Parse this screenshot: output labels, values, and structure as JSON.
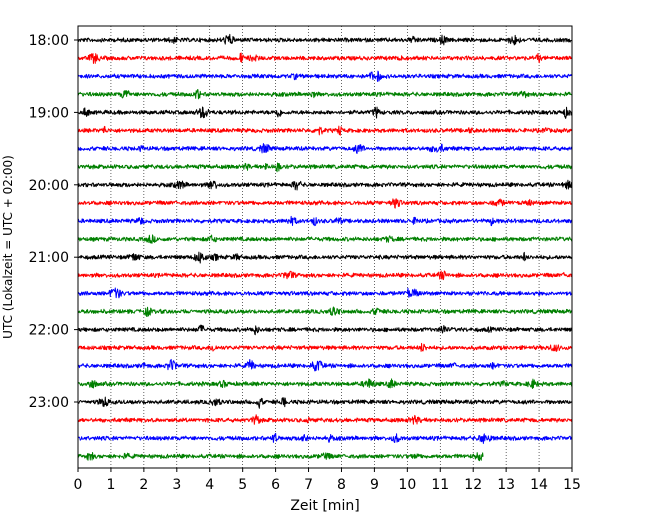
{
  "chart_data": {
    "type": "line",
    "title": "",
    "xlabel": "Zeit  [min]",
    "ylabel": "UTC (Lokalzeit = UTC + 02:00)",
    "xlim": [
      0,
      15
    ],
    "x_ticks": [
      "0",
      "1",
      "2",
      "3",
      "4",
      "5",
      "6",
      "7",
      "8",
      "9",
      "10",
      "11",
      "12",
      "13",
      "14",
      "15"
    ],
    "y_ticks": [
      "18:00",
      "19:00",
      "20:00",
      "21:00",
      "22:00",
      "23:00"
    ],
    "grid": "vertical dotted lines at each minute",
    "traces": [
      {
        "start": "18:00",
        "color": "#000000",
        "end_min": 15
      },
      {
        "start": "18:15",
        "color": "#ff0000",
        "end_min": 15
      },
      {
        "start": "18:30",
        "color": "#0000ff",
        "end_min": 15
      },
      {
        "start": "18:45",
        "color": "#008000",
        "end_min": 15
      },
      {
        "start": "19:00",
        "color": "#000000",
        "end_min": 15
      },
      {
        "start": "19:15",
        "color": "#ff0000",
        "end_min": 15
      },
      {
        "start": "19:30",
        "color": "#0000ff",
        "end_min": 15
      },
      {
        "start": "19:45",
        "color": "#008000",
        "end_min": 15
      },
      {
        "start": "20:00",
        "color": "#000000",
        "end_min": 15
      },
      {
        "start": "20:15",
        "color": "#ff0000",
        "end_min": 15
      },
      {
        "start": "20:30",
        "color": "#0000ff",
        "end_min": 15
      },
      {
        "start": "20:45",
        "color": "#008000",
        "end_min": 15
      },
      {
        "start": "21:00",
        "color": "#000000",
        "end_min": 15
      },
      {
        "start": "21:15",
        "color": "#ff0000",
        "end_min": 15
      },
      {
        "start": "21:30",
        "color": "#0000ff",
        "end_min": 15
      },
      {
        "start": "21:45",
        "color": "#008000",
        "end_min": 15
      },
      {
        "start": "22:00",
        "color": "#000000",
        "end_min": 15
      },
      {
        "start": "22:15",
        "color": "#ff0000",
        "end_min": 15
      },
      {
        "start": "22:30",
        "color": "#0000ff",
        "end_min": 15
      },
      {
        "start": "22:45",
        "color": "#008000",
        "end_min": 15
      },
      {
        "start": "23:00",
        "color": "#000000",
        "end_min": 15
      },
      {
        "start": "23:15",
        "color": "#ff0000",
        "end_min": 15
      },
      {
        "start": "23:30",
        "color": "#0000ff",
        "end_min": 15
      },
      {
        "start": "23:45",
        "color": "#008000",
        "end_min": 12.3
      }
    ]
  }
}
